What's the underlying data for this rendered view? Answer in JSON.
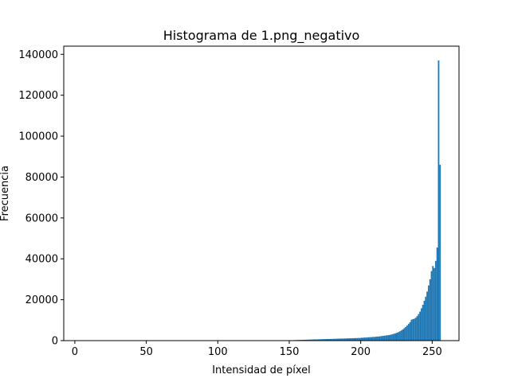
{
  "chart_data": {
    "type": "bar",
    "title": "Histograma de 1.png_negativo",
    "xlabel": "Intensidad de píxel",
    "ylabel": "Frecuencia",
    "xlim": [
      -7.75,
      268.75
    ],
    "ylim": [
      0,
      144000
    ],
    "xticks": [
      0,
      50,
      100,
      150,
      200,
      250
    ],
    "yticks": [
      0,
      20000,
      40000,
      60000,
      80000,
      100000,
      120000,
      140000
    ],
    "bin_width": 1,
    "bar_color": "#1f77b4",
    "bins": [
      [
        150,
        100
      ],
      [
        151,
        150
      ],
      [
        152,
        200
      ],
      [
        153,
        250
      ],
      [
        154,
        250
      ],
      [
        155,
        300
      ],
      [
        156,
        300
      ],
      [
        157,
        350
      ],
      [
        158,
        350
      ],
      [
        159,
        400
      ],
      [
        160,
        400
      ],
      [
        161,
        450
      ],
      [
        162,
        450
      ],
      [
        163,
        500
      ],
      [
        164,
        500
      ],
      [
        165,
        550
      ],
      [
        166,
        550
      ],
      [
        167,
        600
      ],
      [
        168,
        600
      ],
      [
        169,
        600
      ],
      [
        170,
        650
      ],
      [
        171,
        650
      ],
      [
        172,
        700
      ],
      [
        173,
        700
      ],
      [
        174,
        750
      ],
      [
        175,
        750
      ],
      [
        176,
        800
      ],
      [
        177,
        800
      ],
      [
        178,
        800
      ],
      [
        179,
        850
      ],
      [
        180,
        850
      ],
      [
        181,
        900
      ],
      [
        182,
        900
      ],
      [
        183,
        950
      ],
      [
        184,
        950
      ],
      [
        185,
        1000
      ],
      [
        186,
        1000
      ],
      [
        187,
        1000
      ],
      [
        188,
        1050
      ],
      [
        189,
        1050
      ],
      [
        190,
        1100
      ],
      [
        191,
        1100
      ],
      [
        192,
        1150
      ],
      [
        193,
        1150
      ],
      [
        194,
        1200
      ],
      [
        195,
        1200
      ],
      [
        196,
        1250
      ],
      [
        197,
        1250
      ],
      [
        198,
        1300
      ],
      [
        199,
        1300
      ],
      [
        200,
        1400
      ],
      [
        201,
        1400
      ],
      [
        202,
        1500
      ],
      [
        203,
        1500
      ],
      [
        204,
        1600
      ],
      [
        205,
        1600
      ],
      [
        206,
        1700
      ],
      [
        207,
        1700
      ],
      [
        208,
        1800
      ],
      [
        209,
        1800
      ],
      [
        210,
        1900
      ],
      [
        211,
        2000
      ],
      [
        212,
        2000
      ],
      [
        213,
        2100
      ],
      [
        214,
        2200
      ],
      [
        215,
        2300
      ],
      [
        216,
        2400
      ],
      [
        217,
        2500
      ],
      [
        218,
        2600
      ],
      [
        219,
        2700
      ],
      [
        220,
        2800
      ],
      [
        221,
        3000
      ],
      [
        222,
        3200
      ],
      [
        223,
        3400
      ],
      [
        224,
        3600
      ],
      [
        225,
        3900
      ],
      [
        226,
        4200
      ],
      [
        227,
        4600
      ],
      [
        228,
        5000
      ],
      [
        229,
        5500
      ],
      [
        230,
        6100
      ],
      [
        231,
        6700
      ],
      [
        232,
        7400
      ],
      [
        233,
        8200
      ],
      [
        234,
        9000
      ],
      [
        235,
        10200
      ],
      [
        236,
        10500
      ],
      [
        237,
        10700
      ],
      [
        238,
        11200
      ],
      [
        239,
        12000
      ],
      [
        240,
        13000
      ],
      [
        241,
        14200
      ],
      [
        242,
        15800
      ],
      [
        243,
        17500
      ],
      [
        244,
        19500
      ],
      [
        245,
        21500
      ],
      [
        246,
        24000
      ],
      [
        247,
        27000
      ],
      [
        248,
        30000
      ],
      [
        249,
        34000
      ],
      [
        250,
        36500
      ],
      [
        251,
        35500
      ],
      [
        252,
        39000
      ],
      [
        253,
        45500
      ],
      [
        254,
        137000
      ],
      [
        255,
        86000
      ]
    ]
  }
}
